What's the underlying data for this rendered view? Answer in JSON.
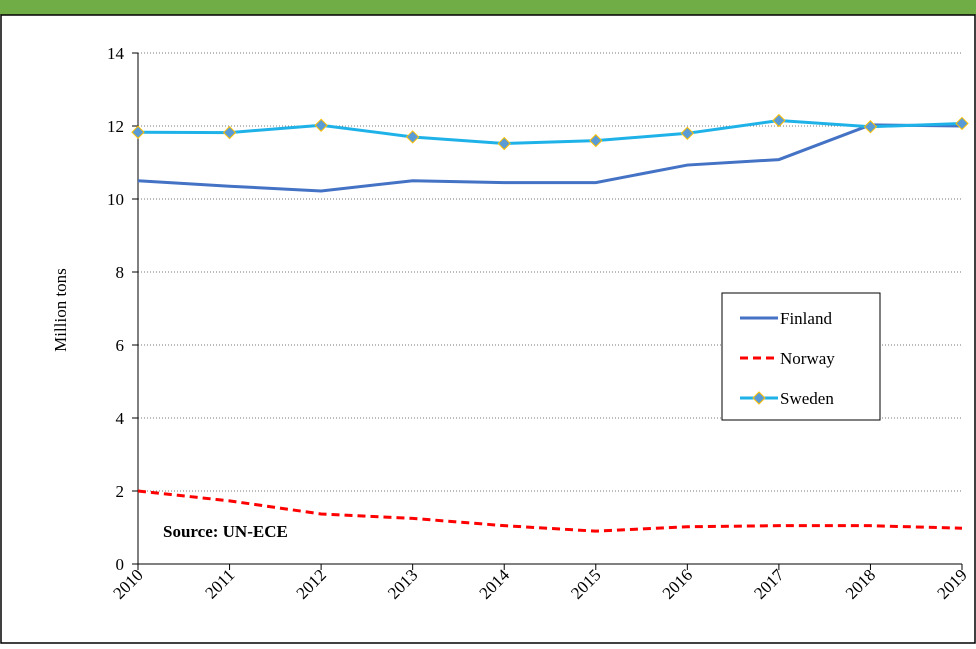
{
  "chart_data": {
    "type": "line",
    "y_label": "Million tons",
    "annotation": "Source: UN-ECE",
    "categories": [
      "2010",
      "2011",
      "2012",
      "2013",
      "2014",
      "2015",
      "2016",
      "2017",
      "2018",
      "2019"
    ],
    "series": [
      {
        "name": "Finland",
        "color": "#4472c4",
        "style": "solid",
        "marker": "none",
        "values": [
          10.5,
          10.35,
          10.22,
          10.5,
          10.45,
          10.45,
          10.93,
          11.08,
          12.03,
          12.0
        ]
      },
      {
        "name": "Norway",
        "color": "#ff0000",
        "style": "dashed",
        "marker": "none",
        "values": [
          2.0,
          1.73,
          1.37,
          1.25,
          1.05,
          0.9,
          1.02,
          1.05,
          1.05,
          0.98
        ]
      },
      {
        "name": "Sweden",
        "color": "#1fb2e8",
        "style": "solid",
        "marker": "diamond",
        "values": [
          11.83,
          11.82,
          12.02,
          11.7,
          11.52,
          11.6,
          11.8,
          12.15,
          11.98,
          12.07
        ]
      }
    ],
    "ylim": [
      0,
      14
    ],
    "yticks": [
      0,
      2,
      4,
      6,
      8,
      10,
      12,
      14
    ],
    "grid": true,
    "legend": "right"
  }
}
